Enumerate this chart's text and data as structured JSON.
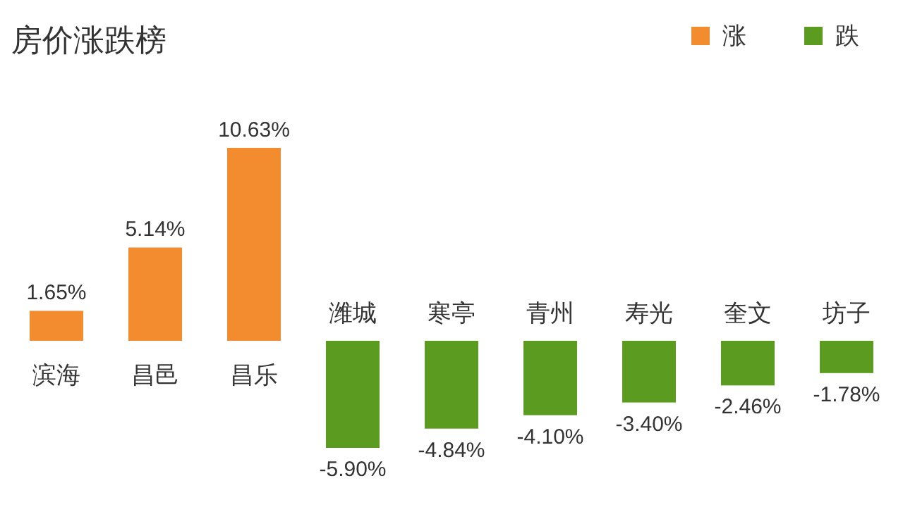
{
  "chart_data": {
    "type": "bar",
    "title": "房价涨跌榜",
    "categories": [
      "滨海",
      "昌邑",
      "昌乐",
      "潍城",
      "寒亭",
      "青州",
      "寿光",
      "奎文",
      "坊子"
    ],
    "series": [
      {
        "name": "涨",
        "color": "#f28c2e",
        "values": [
          1.65,
          5.14,
          10.63,
          null,
          null,
          null,
          null,
          null,
          null
        ],
        "value_labels": [
          "1.65%",
          "5.14%",
          "10.63%",
          null,
          null,
          null,
          null,
          null,
          null
        ]
      },
      {
        "name": "跌",
        "color": "#5b9b1f",
        "values": [
          null,
          null,
          null,
          -5.9,
          -4.84,
          -4.1,
          -3.4,
          -2.46,
          -1.78
        ],
        "value_labels": [
          null,
          null,
          null,
          "-5.90%",
          "-4.84%",
          "-4.10%",
          "-3.40%",
          "-2.46%",
          "-1.78%"
        ]
      }
    ],
    "legend": "top right"
  }
}
